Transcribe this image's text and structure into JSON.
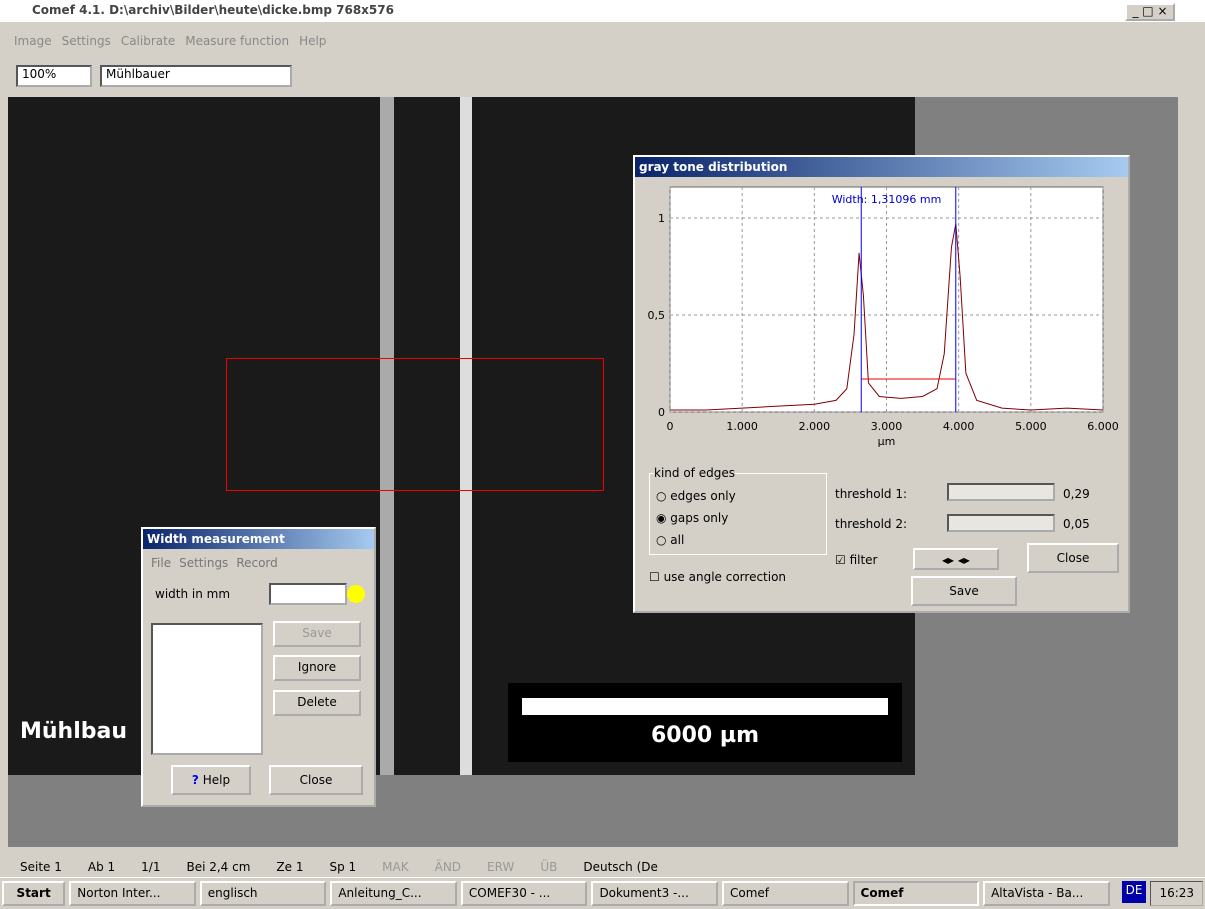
{
  "window": {
    "title": "Comef 4.1.  D:\\archiv\\Bilder\\heute\\dicke.bmp  768x576",
    "menu": [
      "Image",
      "Settings",
      "Calibrate",
      "Measure function",
      "Help"
    ],
    "zoom": "100%",
    "profile": "Mühlbauer"
  },
  "image": {
    "label": "Mühlbau",
    "scale_bar": "6000  µm"
  },
  "gray_dialog": {
    "title": "gray tone distribution",
    "chart": {
      "type": "line",
      "title": "Width: 1,31096 mm",
      "x_label": "µm",
      "x": [
        0,
        500,
        1000,
        1500,
        2000,
        2300,
        2450,
        2550,
        2620,
        2680,
        2750,
        2900,
        3200,
        3500,
        3700,
        3800,
        3900,
        3960,
        4020,
        4100,
        4250,
        4600,
        5000,
        5500,
        6000
      ],
      "series": [
        {
          "color": "#800000",
          "values": [
            0.01,
            0.01,
            0.02,
            0.03,
            0.04,
            0.06,
            0.12,
            0.4,
            0.82,
            0.6,
            0.15,
            0.08,
            0.07,
            0.08,
            0.12,
            0.3,
            0.85,
            0.97,
            0.7,
            0.2,
            0.06,
            0.02,
            0.01,
            0.02,
            0.01
          ]
        }
      ],
      "edges": [
        2650,
        3960
      ],
      "threshold_level": 0.17,
      "xlim": [
        0,
        6000
      ],
      "ylim": [
        0,
        1.16
      ],
      "xticks": [
        0,
        {
          "value": 1000,
          "label": "1.000"
        },
        {
          "value": 2000,
          "label": "2.000"
        },
        {
          "value": 3000,
          "label": "3.000"
        },
        {
          "value": 4000,
          "label": "4.000"
        },
        {
          "value": 5000,
          "label": "5.000"
        },
        {
          "value": 6000,
          "label": "6.000"
        }
      ],
      "yticks": [
        0,
        {
          "value": 0.5,
          "label": "0,5"
        },
        1
      ],
      "grid": true
    },
    "group": "kind of edges",
    "radios": [
      "edges only",
      "gaps only",
      "all"
    ],
    "angle": "use angle correction",
    "threshold1": "threshold 1:",
    "threshold1_value": "0,29",
    "threshold2": "threshold 2:",
    "threshold2_value": "0,05",
    "filter": "filter",
    "close": "Close",
    "save": "Save"
  },
  "width_dialog": {
    "title": "Width measurement",
    "menu": [
      "File",
      "Settings",
      "Record"
    ],
    "field": "width in mm",
    "save": "Save",
    "ignore": "Ignore",
    "delete": "Delete",
    "help": "Help",
    "close": "Close"
  },
  "status_bar": [
    "Seite 1",
    "Ab 1",
    "1/1",
    "Bei 2,4 cm",
    "Ze 1",
    "Sp 1",
    "MAK",
    "ÄND",
    "ERW",
    "ÜB",
    "Deutsch (De"
  ],
  "taskbar": {
    "start": "Start",
    "items": [
      "Norton Inter...",
      "englisch",
      "Anleitung_C...",
      "COMEF30 - ...",
      "Dokument3 -...",
      "Comef",
      "Comef",
      "AltaVista - Ba..."
    ],
    "lang": "DE",
    "clock": "16:23"
  }
}
